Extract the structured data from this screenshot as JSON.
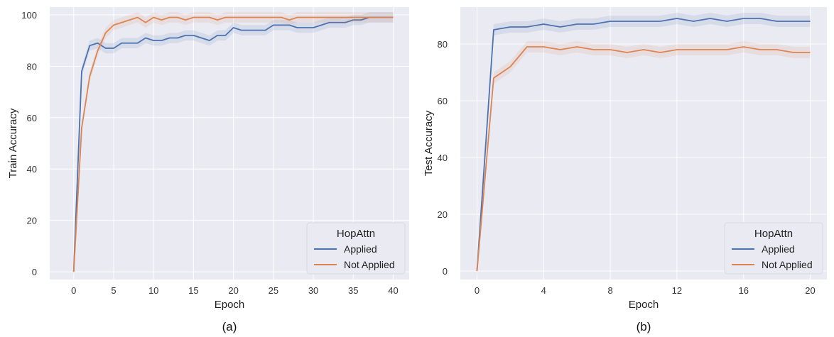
{
  "chart_data": [
    {
      "type": "line",
      "caption": "(a)",
      "xlabel": "Epoch",
      "ylabel": "Train Accuracy",
      "xlim": [
        -3,
        42
      ],
      "ylim": [
        -3,
        103
      ],
      "xticks": [
        0,
        5,
        10,
        15,
        20,
        25,
        30,
        35,
        40
      ],
      "yticks": [
        0,
        20,
        40,
        60,
        80,
        100
      ],
      "grid": true,
      "legend": {
        "title": "HopAttn",
        "position": "bottom-right"
      },
      "series": [
        {
          "name": "Applied",
          "color": "#4c72b0",
          "x": [
            0,
            1,
            2,
            3,
            4,
            5,
            6,
            7,
            8,
            9,
            10,
            11,
            12,
            13,
            14,
            15,
            16,
            17,
            18,
            19,
            20,
            21,
            22,
            23,
            24,
            25,
            26,
            27,
            28,
            29,
            30,
            31,
            32,
            33,
            34,
            35,
            36,
            37,
            38,
            39,
            40
          ],
          "y": [
            0,
            78,
            88,
            89,
            87,
            87,
            89,
            89,
            89,
            91,
            90,
            90,
            91,
            91,
            92,
            92,
            91,
            90,
            92,
            92,
            95,
            94,
            94,
            94,
            94,
            96,
            96,
            96,
            95,
            95,
            95,
            96,
            97,
            97,
            97,
            98,
            98,
            99,
            99,
            99,
            99
          ]
        },
        {
          "name": "Not Applied",
          "color": "#dd8452",
          "x": [
            0,
            1,
            2,
            3,
            4,
            5,
            6,
            7,
            8,
            9,
            10,
            11,
            12,
            13,
            14,
            15,
            16,
            17,
            18,
            19,
            20,
            21,
            22,
            23,
            24,
            25,
            26,
            27,
            28,
            29,
            30,
            31,
            32,
            33,
            34,
            35,
            36,
            37,
            38,
            39,
            40
          ],
          "y": [
            0,
            56,
            76,
            86,
            93,
            96,
            97,
            98,
            99,
            97,
            99,
            98,
            99,
            99,
            98,
            99,
            99,
            99,
            98,
            99,
            99,
            99,
            99,
            99,
            99,
            99,
            99,
            98,
            99,
            99,
            99,
            99,
            99,
            99,
            99,
            99,
            99,
            99,
            99,
            99,
            99
          ]
        }
      ]
    },
    {
      "type": "line",
      "caption": "(b)",
      "xlabel": "Epoch",
      "ylabel": "Test Accuracy",
      "xlim": [
        -1,
        21
      ],
      "ylim": [
        -3,
        93
      ],
      "xticks": [
        0,
        4,
        8,
        12,
        16,
        20
      ],
      "yticks": [
        0,
        20,
        40,
        60,
        80
      ],
      "grid": true,
      "legend": {
        "title": "HopAttn",
        "position": "bottom-right"
      },
      "series": [
        {
          "name": "Applied",
          "color": "#4c72b0",
          "x": [
            0,
            1,
            2,
            3,
            4,
            5,
            6,
            7,
            8,
            9,
            10,
            11,
            12,
            13,
            14,
            15,
            16,
            17,
            18,
            19,
            20
          ],
          "y": [
            0,
            85,
            86,
            86,
            87,
            86,
            87,
            87,
            88,
            88,
            88,
            88,
            89,
            88,
            89,
            88,
            89,
            89,
            88,
            88,
            88
          ]
        },
        {
          "name": "Not Applied",
          "color": "#dd8452",
          "x": [
            0,
            1,
            2,
            3,
            4,
            5,
            6,
            7,
            8,
            9,
            10,
            11,
            12,
            13,
            14,
            15,
            16,
            17,
            18,
            19,
            20
          ],
          "y": [
            0,
            68,
            72,
            79,
            79,
            78,
            79,
            78,
            78,
            77,
            78,
            77,
            78,
            78,
            78,
            78,
            79,
            78,
            78,
            77,
            77
          ]
        }
      ]
    }
  ]
}
